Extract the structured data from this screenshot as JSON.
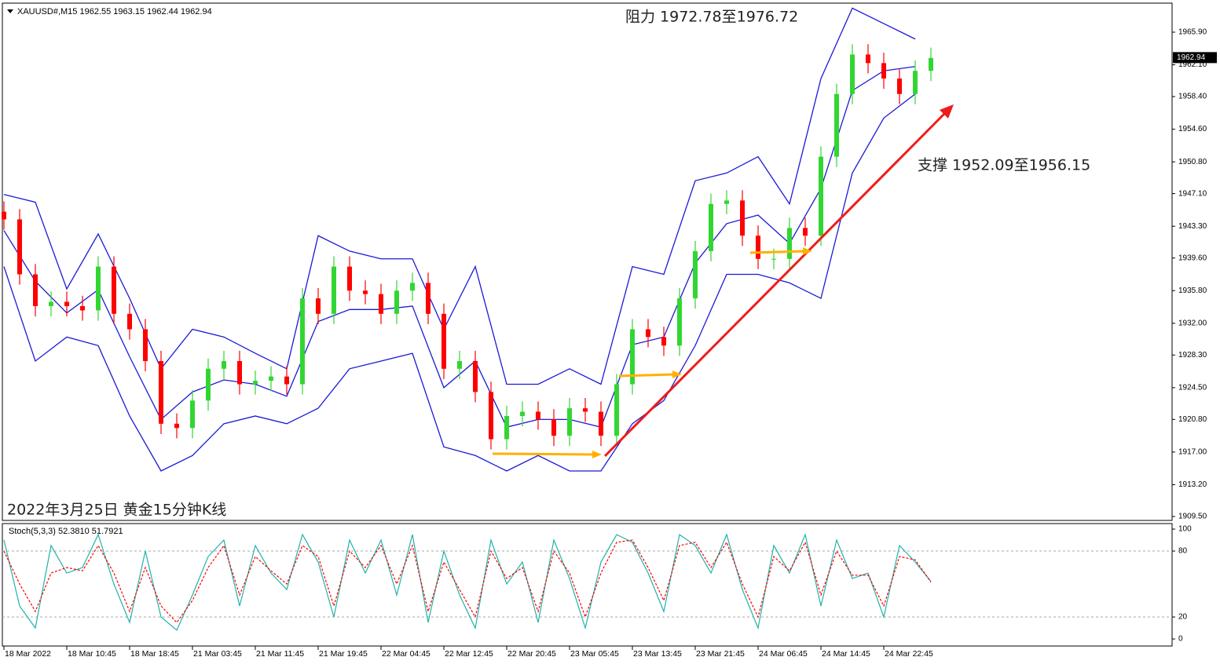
{
  "chart_data": [
    {
      "type": "candlestick",
      "header": "XAUUSD#,M15  1962.55 1963.15 1962.44 1962.94",
      "annotations": [
        "阻力 1972.78至1976.72",
        "支撑 1952.09至1956.15",
        "2022年3月25日 黄金15分钟K线"
      ],
      "up_color": "#32d632",
      "down_color": "#ff0000",
      "x": [
        0,
        8,
        16,
        24,
        32,
        40,
        48,
        56,
        64,
        72,
        80,
        88,
        96,
        104,
        112,
        120,
        128,
        136,
        144,
        152,
        160,
        168,
        176,
        184,
        192,
        200,
        208,
        216,
        224,
        232,
        240,
        248,
        256,
        264,
        272,
        280,
        288,
        296,
        304,
        312,
        320,
        328,
        336,
        344,
        352,
        360,
        368,
        376,
        384,
        392,
        400,
        408,
        416,
        424,
        432,
        440,
        448,
        456,
        464,
        472
      ],
      "open": [
        1945.0,
        1944.1,
        1937.7,
        1934.0,
        1934.5,
        1934.0,
        1933.5,
        1938.6,
        1933.1,
        1931.3,
        1927.6,
        1920.3,
        1919.8,
        1923.0,
        1926.7,
        1927.6,
        1924.9,
        1925.3,
        1925.8,
        1924.9,
        1934.9,
        1933.1,
        1938.6,
        1935.8,
        1935.4,
        1933.1,
        1935.8,
        1936.7,
        1933.1,
        1926.7,
        1927.6,
        1924.0,
        1918.5,
        1921.2,
        1921.7,
        1920.8,
        1918.9,
        1922.1,
        1921.7,
        1918.9,
        1924.9,
        1931.3,
        1930.4,
        1929.4,
        1934.9,
        1940.4,
        1945.9,
        1946.3,
        1942.2,
        1939.5,
        1939.5,
        1943.1,
        1942.2,
        1951.4,
        1958.7,
        1963.3,
        1962.3,
        1960.5,
        1958.7,
        1961.4
      ],
      "high": [
        1946.2,
        1945.3,
        1938.9,
        1935.7,
        1935.7,
        1935.2,
        1939.8,
        1939.8,
        1934.3,
        1932.5,
        1928.8,
        1921.5,
        1924.2,
        1927.9,
        1928.8,
        1928.8,
        1926.5,
        1927.0,
        1927.0,
        1936.1,
        1936.1,
        1939.8,
        1939.8,
        1937.0,
        1936.6,
        1937.0,
        1937.9,
        1937.9,
        1934.3,
        1928.8,
        1928.8,
        1925.2,
        1922.4,
        1922.9,
        1922.9,
        1922.0,
        1923.3,
        1923.3,
        1922.9,
        1926.1,
        1932.5,
        1932.5,
        1931.6,
        1936.1,
        1941.6,
        1947.1,
        1947.5,
        1947.5,
        1943.4,
        1940.7,
        1944.3,
        1944.3,
        1952.6,
        1959.9,
        1964.5,
        1964.5,
        1963.5,
        1961.7,
        1962.6,
        1964.1
      ],
      "low": [
        1942.9,
        1936.5,
        1932.8,
        1932.8,
        1932.8,
        1932.3,
        1932.3,
        1931.9,
        1930.1,
        1926.4,
        1919.1,
        1918.6,
        1918.6,
        1921.8,
        1925.5,
        1923.7,
        1923.7,
        1924.1,
        1923.7,
        1923.7,
        1931.9,
        1931.9,
        1934.6,
        1934.2,
        1931.9,
        1931.9,
        1934.6,
        1931.9,
        1925.5,
        1925.5,
        1922.8,
        1917.3,
        1917.3,
        1920.0,
        1919.6,
        1917.7,
        1917.7,
        1920.5,
        1917.7,
        1917.7,
        1923.7,
        1929.2,
        1928.2,
        1928.2,
        1933.7,
        1939.2,
        1944.7,
        1941.0,
        1938.3,
        1938.3,
        1938.3,
        1941.0,
        1941.0,
        1950.2,
        1957.5,
        1961.1,
        1959.3,
        1957.5,
        1957.5,
        1960.2
      ],
      "close": [
        1944.1,
        1937.7,
        1934.0,
        1934.5,
        1934.0,
        1933.5,
        1938.6,
        1933.1,
        1931.3,
        1927.6,
        1920.3,
        1919.8,
        1923.0,
        1926.7,
        1927.6,
        1924.9,
        1925.3,
        1925.8,
        1924.9,
        1934.9,
        1933.1,
        1938.6,
        1935.8,
        1935.4,
        1933.1,
        1935.8,
        1936.7,
        1933.1,
        1926.7,
        1927.6,
        1924.0,
        1918.5,
        1921.2,
        1921.7,
        1920.8,
        1918.9,
        1922.1,
        1921.7,
        1918.9,
        1924.9,
        1931.3,
        1930.4,
        1929.4,
        1934.9,
        1940.4,
        1945.9,
        1946.3,
        1942.2,
        1939.5,
        1939.5,
        1943.1,
        1942.2,
        1951.4,
        1958.7,
        1963.3,
        1962.3,
        1960.5,
        1958.7,
        1961.4,
        1962.9
      ],
      "line_x": [
        0,
        16,
        32,
        48,
        64,
        80,
        96,
        112,
        128,
        144,
        160,
        176,
        192,
        208,
        224,
        240,
        256,
        272,
        288,
        304,
        320,
        336,
        352,
        368,
        384,
        400,
        416,
        432,
        448,
        464
      ],
      "lines": [
        {
          "color": "#1a1ad6",
          "values": [
            1947.0,
            1946.1,
            1936.0,
            1942.4,
            1934.9,
            1926.7,
            1931.3,
            1930.4,
            1928.5,
            1926.7,
            1942.2,
            1940.4,
            1939.5,
            1939.5,
            1931.3,
            1938.6,
            1924.9,
            1924.9,
            1926.7,
            1924.9,
            1938.6,
            1937.7,
            1948.6,
            1949.5,
            1951.4,
            1945.9,
            1960.5,
            1968.7,
            1966.9,
            1965.1
          ]
        },
        {
          "color": "#1a1ad6",
          "values": [
            1942.8,
            1936.9,
            1933.2,
            1935.9,
            1928.1,
            1920.8,
            1924.0,
            1925.4,
            1924.9,
            1923.5,
            1932.2,
            1933.6,
            1933.6,
            1934.0,
            1924.5,
            1927.6,
            1919.9,
            1920.8,
            1920.8,
            1919.9,
            1929.5,
            1930.4,
            1939.0,
            1943.6,
            1944.6,
            1941.3,
            1947.7,
            1959.1,
            1961.4,
            1961.9
          ]
        },
        {
          "color": "#1a1ad6",
          "values": [
            1938.6,
            1927.6,
            1930.4,
            1929.4,
            1921.2,
            1914.8,
            1916.6,
            1920.3,
            1921.2,
            1920.3,
            1922.1,
            1926.7,
            1927.6,
            1928.5,
            1917.6,
            1916.6,
            1914.8,
            1916.6,
            1914.8,
            1914.8,
            1920.3,
            1923.0,
            1929.4,
            1937.7,
            1937.7,
            1936.7,
            1934.9,
            1949.5,
            1955.9,
            1958.7
          ]
        }
      ],
      "last_price": 1962.94,
      "xlim": [
        -0.8,
        594.8
      ],
      "ylim": [
        1909.13,
        1969.19
      ],
      "yticks": [
        {
          "value": 1909.5,
          "label": "1909.50"
        },
        {
          "value": 1913.2,
          "label": "1913.20"
        },
        {
          "value": 1917.0,
          "label": "1917.00"
        },
        {
          "value": 1920.8,
          "label": "1920.80"
        },
        {
          "value": 1924.5,
          "label": "1924.50"
        },
        {
          "value": 1928.3,
          "label": "1928.30"
        },
        {
          "value": 1932.0,
          "label": "1932.00"
        },
        {
          "value": 1935.8,
          "label": "1935.80"
        },
        {
          "value": 1939.6,
          "label": "1939.60"
        },
        {
          "value": 1943.3,
          "label": "1943.30"
        },
        {
          "value": 1947.1,
          "label": "1947.10"
        },
        {
          "value": 1950.8,
          "label": "1950.80"
        },
        {
          "value": 1954.6,
          "label": "1954.60"
        },
        {
          "value": 1958.4,
          "label": "1958.40"
        },
        {
          "value": 1962.1,
          "label": "1962.10"
        },
        {
          "value": 1965.9,
          "label": "1965.90"
        }
      ]
    },
    {
      "type": "line",
      "header": "Stoch(5,3,3) 52.3810 51.7921",
      "x": [
        0,
        8,
        16,
        24,
        32,
        40,
        48,
        56,
        64,
        72,
        80,
        88,
        96,
        104,
        112,
        120,
        128,
        136,
        144,
        152,
        160,
        168,
        176,
        184,
        192,
        200,
        208,
        216,
        224,
        232,
        240,
        248,
        256,
        264,
        272,
        280,
        288,
        296,
        304,
        312,
        320,
        328,
        336,
        344,
        352,
        360,
        368,
        376,
        384,
        392,
        400,
        408,
        416,
        424,
        432,
        440,
        448,
        456,
        464,
        472
      ],
      "series": [
        {
          "color": "#20b2aa",
          "dashed": false,
          "values": [
            90,
            30,
            10,
            85,
            60,
            65,
            95,
            50,
            15,
            80,
            20,
            8,
            40,
            75,
            90,
            30,
            85,
            60,
            45,
            95,
            70,
            20,
            90,
            60,
            90,
            40,
            95,
            15,
            80,
            40,
            10,
            90,
            50,
            70,
            15,
            90,
            55,
            10,
            70,
            95,
            88,
            60,
            25,
            95,
            85,
            60,
            95,
            45,
            10,
            85,
            60,
            95,
            30,
            90,
            55,
            60,
            20,
            85,
            70,
            52.38
          ]
        },
        {
          "color": "#ff0000",
          "dashed": true,
          "values": [
            80,
            50,
            25,
            60,
            65,
            62,
            85,
            60,
            25,
            65,
            30,
            15,
            35,
            65,
            85,
            40,
            75,
            62,
            50,
            85,
            75,
            30,
            80,
            65,
            85,
            50,
            85,
            25,
            70,
            45,
            20,
            80,
            55,
            65,
            25,
            80,
            60,
            20,
            60,
            88,
            90,
            65,
            35,
            85,
            88,
            65,
            88,
            50,
            20,
            75,
            62,
            88,
            40,
            80,
            58,
            58,
            30,
            75,
            72,
            51.79
          ]
        }
      ],
      "levels": [
        20,
        80
      ],
      "xlim": [
        -0.8,
        594.8
      ],
      "ylim": [
        -5.7,
        104.3
      ],
      "yticks": [
        0,
        20,
        80,
        100
      ],
      "xticks": [
        {
          "value": 0,
          "label": "18 Mar 2022"
        },
        {
          "value": 32,
          "label": "18 Mar 10:45"
        },
        {
          "value": 64,
          "label": "18 Mar 18:45"
        },
        {
          "value": 96,
          "label": "21 Mar 03:45"
        },
        {
          "value": 128,
          "label": "21 Mar 11:45"
        },
        {
          "value": 160,
          "label": "21 Mar 19:45"
        },
        {
          "value": 192,
          "label": "22 Mar 04:45"
        },
        {
          "value": 224,
          "label": "22 Mar 12:45"
        },
        {
          "value": 256,
          "label": "22 Mar 20:45"
        },
        {
          "value": 288,
          "label": "23 Mar 05:45"
        },
        {
          "value": 320,
          "label": "23 Mar 13:45"
        },
        {
          "value": 352,
          "label": "23 Mar 21:45"
        },
        {
          "value": 384,
          "label": "24 Mar 06:45"
        },
        {
          "value": 416,
          "label": "24 Mar 14:45"
        },
        {
          "value": 448,
          "label": "24 Mar 22:45"
        }
      ]
    }
  ]
}
